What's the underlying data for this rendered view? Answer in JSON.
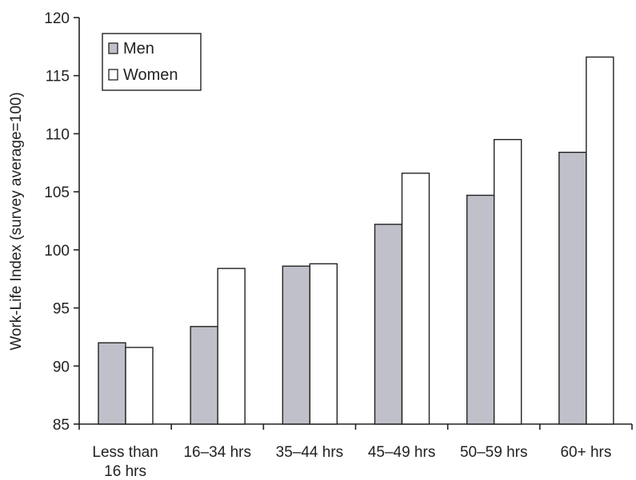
{
  "chart_data": {
    "type": "bar",
    "title": "",
    "xlabel": "",
    "ylabel": "Work-Life Index (survey average=100)",
    "ylim": [
      85,
      120
    ],
    "yticks": [
      85,
      90,
      95,
      100,
      105,
      110,
      115,
      120
    ],
    "grid": false,
    "legend_position": "top-left",
    "categories": [
      [
        "Less than",
        "16 hrs"
      ],
      [
        "16–34 hrs"
      ],
      [
        "35–44 hrs"
      ],
      [
        "45–49 hrs"
      ],
      [
        "50–59 hrs"
      ],
      [
        "60+ hrs"
      ]
    ],
    "series": [
      {
        "name": "Men",
        "color": "#bfc0c9",
        "values": [
          92.0,
          93.4,
          98.6,
          102.2,
          104.7,
          108.4
        ]
      },
      {
        "name": "Women",
        "color": "#ffffff",
        "values": [
          91.6,
          98.4,
          98.8,
          106.6,
          109.5,
          116.6
        ]
      }
    ]
  }
}
